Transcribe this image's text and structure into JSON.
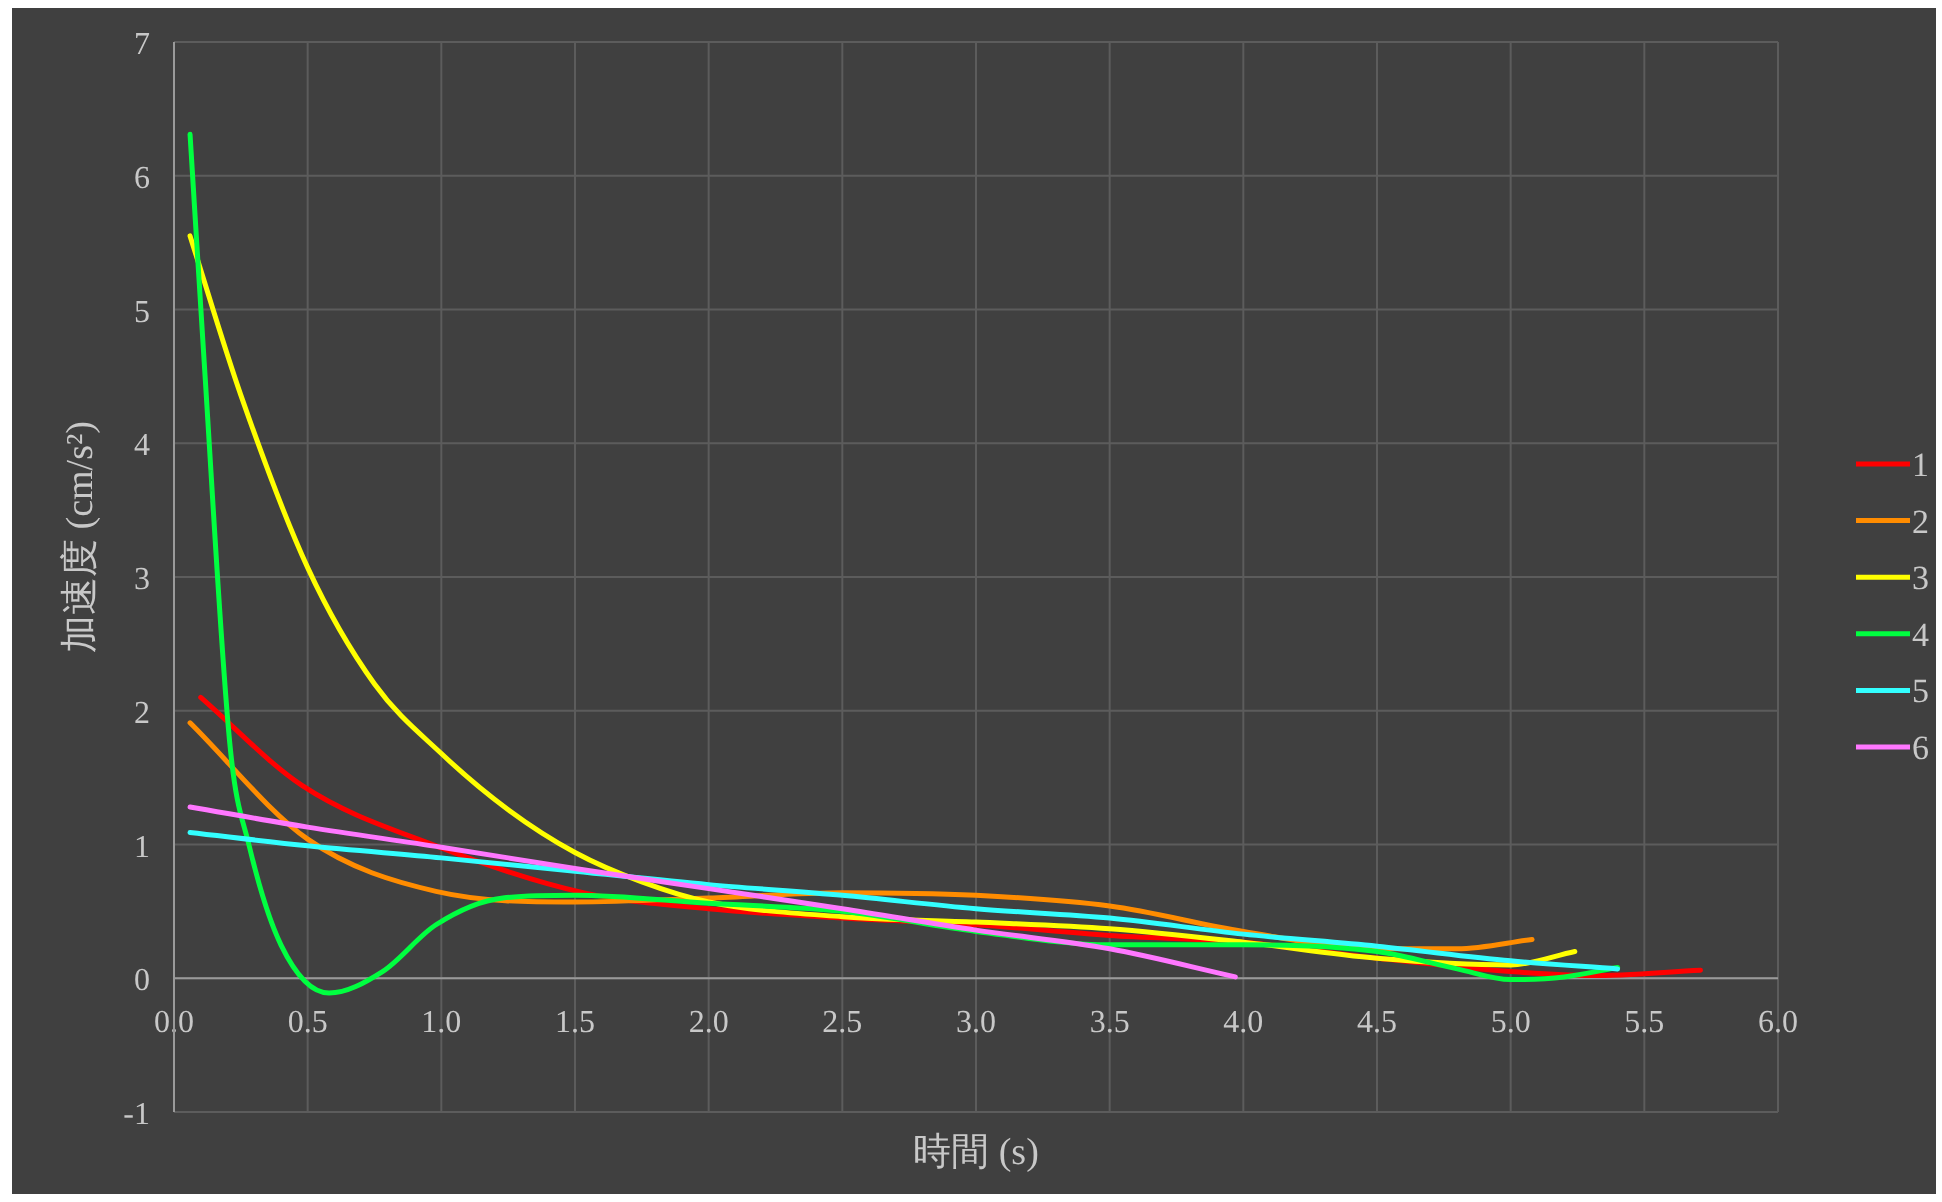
{
  "chart_data": {
    "type": "line",
    "xlabel": "時間 (s)",
    "ylabel": "加速度 (cm/s²)",
    "xlim": [
      0,
      6
    ],
    "ylim": [
      -1,
      7
    ],
    "xticks": [
      {
        "value": 0,
        "label": "0.0"
      },
      {
        "value": 0.5,
        "label": "0.5"
      },
      {
        "value": 1,
        "label": "1.0"
      },
      {
        "value": 1.5,
        "label": "1.5"
      },
      {
        "value": 2,
        "label": "2.0"
      },
      {
        "value": 2.5,
        "label": "2.5"
      },
      {
        "value": 3,
        "label": "3.0"
      },
      {
        "value": 3.5,
        "label": "3.5"
      },
      {
        "value": 4,
        "label": "4.0"
      },
      {
        "value": 4.5,
        "label": "4.5"
      },
      {
        "value": 5,
        "label": "5.0"
      },
      {
        "value": 5.5,
        "label": "5.5"
      },
      {
        "value": 6,
        "label": "6.0"
      }
    ],
    "yticks": [
      -1,
      0,
      1,
      2,
      3,
      4,
      5,
      6,
      7
    ],
    "grid": true,
    "legend": "right",
    "marker": "none",
    "line_style": "solid",
    "series": [
      {
        "name": "1",
        "color": "#ff0000",
        "x": [
          0.1,
          0.48,
          0.98,
          1.53,
          2.0,
          2.5,
          3.0,
          3.5,
          4.0,
          4.5,
          5.0,
          5.3,
          5.71
        ],
        "values": [
          2.1,
          1.44,
          0.99,
          0.64,
          0.52,
          0.45,
          0.4,
          0.32,
          0.27,
          0.15,
          0.05,
          0.02,
          0.06
        ]
      },
      {
        "name": "2",
        "color": "#ff8c00",
        "x": [
          0.06,
          0.5,
          0.98,
          1.5,
          2.0,
          2.5,
          3.0,
          3.5,
          4.0,
          4.5,
          4.8,
          5.08
        ],
        "values": [
          1.91,
          1.04,
          0.65,
          0.57,
          0.6,
          0.64,
          0.62,
          0.54,
          0.35,
          0.22,
          0.22,
          0.29
        ]
      },
      {
        "name": "3",
        "color": "#ffff00",
        "x": [
          0.06,
          0.25,
          0.5,
          0.75,
          1.0,
          1.25,
          1.5,
          1.75,
          2.0,
          2.5,
          3.0,
          3.5,
          4.0,
          4.5,
          5.0,
          5.24
        ],
        "values": [
          5.55,
          4.36,
          3.07,
          2.2,
          1.68,
          1.26,
          0.94,
          0.72,
          0.57,
          0.46,
          0.42,
          0.37,
          0.27,
          0.15,
          0.1,
          0.2
        ]
      },
      {
        "name": "4",
        "color": "#00ff40",
        "x": [
          0.06,
          0.11,
          0.21,
          0.28,
          0.4,
          0.58,
          0.78,
          0.98,
          1.23,
          1.5,
          2.0,
          2.5,
          3.0,
          3.5,
          4.0,
          4.5,
          4.8,
          5.0,
          5.2,
          5.4
        ],
        "values": [
          6.31,
          4.7,
          1.73,
          1.0,
          0.25,
          -0.11,
          0.05,
          0.4,
          0.6,
          0.62,
          0.56,
          0.5,
          0.35,
          0.25,
          0.25,
          0.2,
          0.07,
          -0.01,
          0.01,
          0.08
        ]
      },
      {
        "name": "5",
        "color": "#33ffff",
        "x": [
          0.06,
          0.5,
          1.0,
          1.5,
          2.0,
          2.5,
          3.0,
          3.5,
          4.0,
          4.5,
          5.0,
          5.4
        ],
        "values": [
          1.09,
          0.99,
          0.9,
          0.8,
          0.7,
          0.62,
          0.52,
          0.45,
          0.33,
          0.24,
          0.13,
          0.07
        ]
      },
      {
        "name": "6",
        "color": "#ff77ff",
        "x": [
          0.06,
          0.5,
          1.0,
          1.5,
          2.0,
          2.5,
          3.0,
          3.5,
          3.97
        ],
        "values": [
          1.28,
          1.13,
          0.98,
          0.82,
          0.67,
          0.52,
          0.36,
          0.22,
          0.01
        ]
      }
    ]
  }
}
